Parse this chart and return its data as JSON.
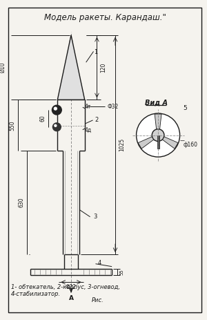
{
  "title": "Модель ракеты. Карандаш.\"",
  "bg_color": "#f5f3ee",
  "line_color": "#1a1a1a",
  "caption_line1": "1- обтекатель, 2-корпус, 3-огневод,",
  "caption_line2": "4-стабилизатор.",
  "caption_line3": "Рис.",
  "view_label": "Вид А",
  "border_color": "#1a1a1a"
}
